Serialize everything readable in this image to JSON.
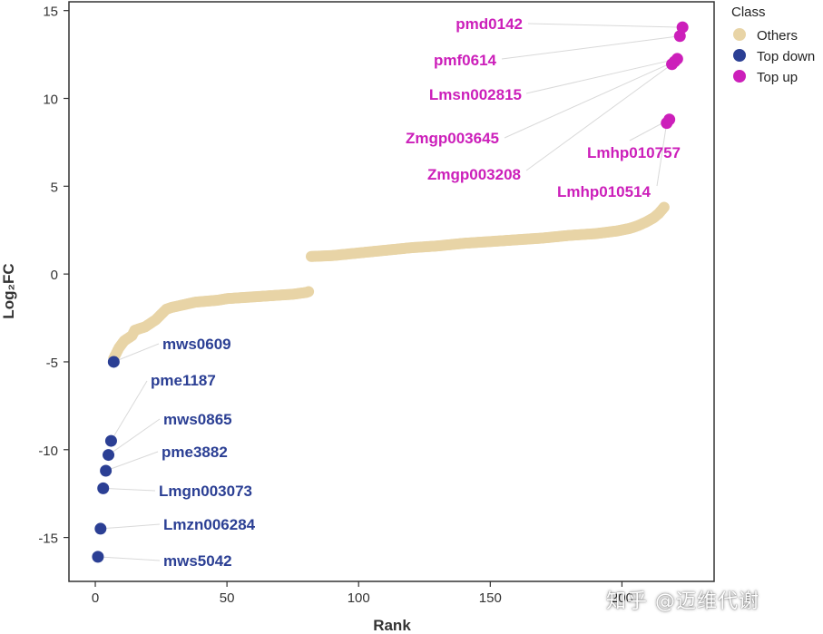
{
  "chart_data": {
    "type": "scatter",
    "xlabel": "Rank",
    "ylabel": "Log₂FC",
    "xlim": [
      -10,
      235
    ],
    "ylim": [
      -17.5,
      15.5
    ],
    "x_ticks": [
      0,
      50,
      100,
      150,
      200
    ],
    "x_tick_labels": [
      "0",
      "50",
      "100",
      "150",
      "200"
    ],
    "y_ticks": [
      -15,
      -10,
      -5,
      0,
      5,
      10,
      15
    ],
    "y_tick_labels": [
      "-15",
      "-10",
      "-5",
      "0",
      "5",
      "10",
      "15"
    ],
    "legend": {
      "title": "Class",
      "position": "top-right outside",
      "entries": [
        {
          "name": "Others",
          "color": "#e8d4a6"
        },
        {
          "name": "Top down",
          "color": "#2b3f94"
        },
        {
          "name": "Top up",
          "color": "#cc1fba"
        }
      ]
    },
    "others_curve": [
      [
        7,
        -4.8
      ],
      [
        8,
        -4.5
      ],
      [
        9,
        -4.2
      ],
      [
        10,
        -4.0
      ],
      [
        11,
        -3.8
      ],
      [
        12,
        -3.7
      ],
      [
        13,
        -3.6
      ],
      [
        14,
        -3.5
      ],
      [
        15,
        -3.2
      ],
      [
        17,
        -3.1
      ],
      [
        19,
        -3.0
      ],
      [
        21,
        -2.8
      ],
      [
        23,
        -2.6
      ],
      [
        25,
        -2.3
      ],
      [
        27,
        -2.0
      ],
      [
        29,
        -1.9
      ],
      [
        32,
        -1.8
      ],
      [
        35,
        -1.7
      ],
      [
        38,
        -1.6
      ],
      [
        42,
        -1.55
      ],
      [
        46,
        -1.5
      ],
      [
        50,
        -1.4
      ],
      [
        55,
        -1.35
      ],
      [
        60,
        -1.3
      ],
      [
        65,
        -1.25
      ],
      [
        70,
        -1.2
      ],
      [
        75,
        -1.15
      ],
      [
        80,
        -1.05
      ],
      [
        81,
        -1.0
      ],
      [
        82,
        1.0
      ],
      [
        90,
        1.05
      ],
      [
        100,
        1.2
      ],
      [
        110,
        1.35
      ],
      [
        120,
        1.5
      ],
      [
        130,
        1.6
      ],
      [
        140,
        1.75
      ],
      [
        150,
        1.85
      ],
      [
        160,
        1.95
      ],
      [
        170,
        2.05
      ],
      [
        180,
        2.2
      ],
      [
        190,
        2.3
      ],
      [
        198,
        2.45
      ],
      [
        203,
        2.6
      ],
      [
        206,
        2.75
      ],
      [
        209,
        2.95
      ],
      [
        212,
        3.2
      ],
      [
        214,
        3.45
      ],
      [
        216,
        3.8
      ]
    ],
    "top_down": [
      {
        "x": 1,
        "y": -16.1,
        "label": "mws5042"
      },
      {
        "x": 2,
        "y": -14.5,
        "label": "Lmzn006284"
      },
      {
        "x": 3,
        "y": -12.2,
        "label": "Lmgn003073"
      },
      {
        "x": 4,
        "y": -11.2,
        "label": "pme3882"
      },
      {
        "x": 5,
        "y": -10.3,
        "label": "mws0865"
      },
      {
        "x": 6,
        "y": -9.5,
        "label": "pme1187"
      },
      {
        "x": 7,
        "y": -5.0,
        "label": "mws0609"
      }
    ],
    "top_up": [
      {
        "x": 217,
        "y": 8.6,
        "label": "Lmhp010514"
      },
      {
        "x": 218,
        "y": 8.8,
        "label": "Lmhp010757"
      },
      {
        "x": 219,
        "y": 11.95,
        "label": "Zmgp003208"
      },
      {
        "x": 220,
        "y": 12.1,
        "label": "Zmgp003645"
      },
      {
        "x": 221,
        "y": 12.25,
        "label": "Lmsn002815"
      },
      {
        "x": 222,
        "y": 13.55,
        "label": "pmf0614"
      },
      {
        "x": 223,
        "y": 14.05,
        "label": "pmd0142"
      }
    ]
  },
  "watermark": "知乎 @迈维代谢"
}
